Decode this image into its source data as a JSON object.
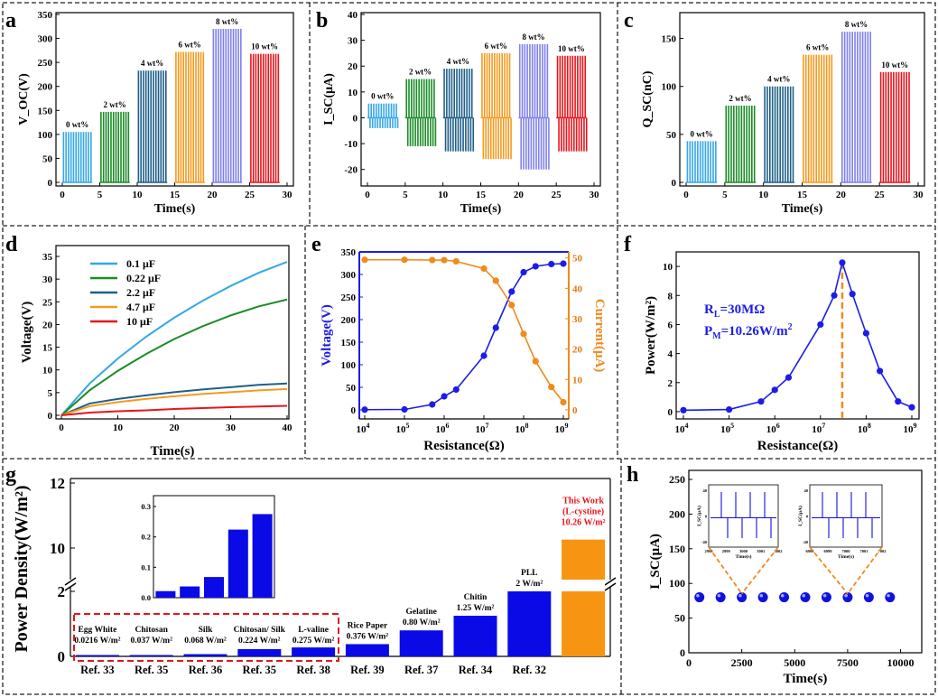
{
  "chart_data": [
    {
      "panel": "a",
      "type": "bar",
      "xlabel": "Time(s)",
      "ylabel": "V_OC(V)",
      "xlim": [
        0,
        30
      ],
      "ylim": [
        0,
        350
      ],
      "xticks": [
        "0",
        "5",
        "10",
        "15",
        "20",
        "25",
        "30"
      ],
      "yticks": [
        "0",
        "50",
        "100",
        "150",
        "200",
        "250",
        "300",
        "350"
      ],
      "series": [
        {
          "name": "0 wt%",
          "values": [
            105
          ],
          "time_range": [
            0,
            4
          ],
          "color": "#35a7e6"
        },
        {
          "name": "2 wt%",
          "values": [
            147
          ],
          "time_range": [
            5,
            9
          ],
          "color": "#1b8c27"
        },
        {
          "name": "4 wt%",
          "values": [
            233
          ],
          "time_range": [
            10,
            14
          ],
          "color": "#1f5f88"
        },
        {
          "name": "6 wt%",
          "values": [
            272
          ],
          "time_range": [
            15,
            19
          ],
          "color": "#f59a1e"
        },
        {
          "name": "8 wt%",
          "values": [
            320
          ],
          "time_range": [
            20,
            24
          ],
          "color": "#7f80ec"
        },
        {
          "name": "10 wt%",
          "values": [
            268
          ],
          "time_range": [
            25,
            29
          ],
          "color": "#e8141c"
        }
      ]
    },
    {
      "panel": "b",
      "type": "bar",
      "xlabel": "Time(s)",
      "ylabel": "I_SC(μA)",
      "xlim": [
        0,
        30
      ],
      "ylim": [
        -25,
        40
      ],
      "xticks": [
        "0",
        "5",
        "10",
        "15",
        "20",
        "25",
        "30"
      ],
      "yticks": [
        "-20",
        "-10",
        "0",
        "10",
        "20",
        "30",
        "40"
      ],
      "series": [
        {
          "name": "0 wt%",
          "values": [
            5.5,
            -4
          ],
          "time_range": [
            0,
            4
          ],
          "color": "#35a7e6"
        },
        {
          "name": "2 wt%",
          "values": [
            15,
            -11
          ],
          "time_range": [
            5,
            9
          ],
          "color": "#1b8c27"
        },
        {
          "name": "4 wt%",
          "values": [
            19,
            -13
          ],
          "time_range": [
            10,
            14
          ],
          "color": "#1f5f88"
        },
        {
          "name": "6 wt%",
          "values": [
            25,
            -16
          ],
          "time_range": [
            15,
            19
          ],
          "color": "#f59a1e"
        },
        {
          "name": "8 wt%",
          "values": [
            28.5,
            -20
          ],
          "time_range": [
            20,
            24
          ],
          "color": "#7f80ec"
        },
        {
          "name": "10 wt%",
          "values": [
            24,
            -13
          ],
          "time_range": [
            25,
            29
          ],
          "color": "#e8141c"
        }
      ]
    },
    {
      "panel": "c",
      "type": "bar",
      "xlabel": "Time(s)",
      "ylabel": "Q_SC(nC)",
      "xlim": [
        0,
        30
      ],
      "ylim": [
        0,
        175
      ],
      "xticks": [
        "0",
        "5",
        "10",
        "15",
        "20",
        "25",
        "30"
      ],
      "yticks": [
        "0",
        "50",
        "100",
        "150"
      ],
      "series": [
        {
          "name": "0 wt%",
          "values": [
            43
          ],
          "time_range": [
            0,
            4
          ],
          "color": "#35a7e6"
        },
        {
          "name": "2 wt%",
          "values": [
            80
          ],
          "time_range": [
            5,
            9
          ],
          "color": "#1b8c27"
        },
        {
          "name": "4 wt%",
          "values": [
            100
          ],
          "time_range": [
            10,
            14
          ],
          "color": "#1f5f88"
        },
        {
          "name": "6 wt%",
          "values": [
            133
          ],
          "time_range": [
            15,
            19
          ],
          "color": "#f59a1e"
        },
        {
          "name": "8 wt%",
          "values": [
            157
          ],
          "time_range": [
            20,
            24
          ],
          "color": "#7f80ec"
        },
        {
          "name": "10 wt%",
          "values": [
            115
          ],
          "time_range": [
            25,
            29
          ],
          "color": "#e8141c"
        }
      ]
    },
    {
      "panel": "d",
      "type": "line",
      "xlabel": "Time(s)",
      "ylabel": "Voltage(V)",
      "xlim": [
        0,
        40
      ],
      "ylim": [
        0,
        35
      ],
      "xticks": [
        "0",
        "10",
        "20",
        "30",
        "40"
      ],
      "yticks": [
        "0",
        "5",
        "10",
        "15",
        "20",
        "25",
        "30",
        "35"
      ],
      "x": [
        0,
        5,
        10,
        15,
        20,
        25,
        30,
        35,
        40
      ],
      "series": [
        {
          "name": "0.1 μF",
          "color": "#35a7e6",
          "values": [
            0,
            7,
            12.5,
            17.3,
            21.5,
            25.2,
            28.5,
            31.4,
            33.8
          ]
        },
        {
          "name": "0.22 μF",
          "color": "#1b8c27",
          "values": [
            0,
            5.5,
            9.8,
            13.5,
            16.8,
            19.6,
            22,
            24,
            25.5
          ]
        },
        {
          "name": "2.2 μF",
          "color": "#1f5f88",
          "values": [
            0,
            2.6,
            3.6,
            4.4,
            5.1,
            5.7,
            6.2,
            6.7,
            7
          ]
        },
        {
          "name": "4.7 μF",
          "color": "#f59a1e",
          "values": [
            0,
            2,
            2.9,
            3.6,
            4.2,
            4.7,
            5.1,
            5.5,
            5.8
          ]
        },
        {
          "name": "10 μF",
          "color": "#e8141c",
          "values": [
            0,
            0.6,
            0.9,
            1.1,
            1.4,
            1.6,
            1.8,
            1.95,
            2.1
          ]
        }
      ]
    },
    {
      "panel": "e",
      "type": "line",
      "xlabel": "Resistance(Ω)",
      "ylabel_left": "Voltage(V)",
      "ylabel_right": "Current(μA)",
      "xscale": "log",
      "xlim": [
        10000,
        1000000000
      ],
      "ylim_left": [
        -20,
        350
      ],
      "ylim_right": [
        -3,
        52
      ],
      "xticks": [
        "10",
        "10",
        "10",
        "10",
        "10",
        "10"
      ],
      "xtick_exponents": [
        "4",
        "5",
        "6",
        "7",
        "8",
        "9"
      ],
      "yticks_left": [
        "0",
        "50",
        "100",
        "150",
        "200",
        "250",
        "300",
        "350"
      ],
      "yticks_right": [
        "0",
        "10",
        "20",
        "30",
        "40",
        "50"
      ],
      "x": [
        10000,
        100000,
        500000,
        1000000,
        2000000,
        10000000,
        20000000,
        50000000,
        100000000,
        200000000,
        500000000,
        1000000000
      ],
      "series": [
        {
          "name": "Voltage",
          "axis": "left",
          "color": "#1c1ce8",
          "values": [
            0.5,
            1,
            12,
            30,
            45,
            120,
            182,
            262,
            305,
            318,
            323,
            324
          ]
        },
        {
          "name": "Current",
          "axis": "right",
          "color": "#f08a1c",
          "values": [
            49.4,
            49.4,
            49.3,
            49.3,
            48.9,
            46.5,
            42.5,
            34.5,
            25,
            16,
            7.5,
            2.5
          ]
        }
      ]
    },
    {
      "panel": "f",
      "type": "line",
      "xlabel": "Resistance(Ω)",
      "ylabel": "Power(W/m²)",
      "xscale": "log",
      "xlim": [
        10000,
        1000000000
      ],
      "ylim": [
        -0.5,
        11
      ],
      "xticks": [
        "10",
        "10",
        "10",
        "10",
        "10",
        "10"
      ],
      "xtick_exponents": [
        "4",
        "5",
        "6",
        "7",
        "8",
        "9"
      ],
      "yticks": [
        "0",
        "2",
        "4",
        "6",
        "8",
        "10"
      ],
      "x": [
        10000,
        100000,
        500000,
        1000000,
        2000000,
        10000000,
        20000000,
        30000000,
        50000000,
        100000000,
        200000000,
        500000000,
        1000000000
      ],
      "values": [
        0.1,
        0.15,
        0.7,
        1.5,
        2.35,
        6,
        8,
        10.26,
        8.1,
        5.4,
        2.8,
        0.7,
        0.3
      ],
      "color": "#1c1ce8",
      "peak_x": 30000000,
      "annotation_line1": "R",
      "annotation_sub1": "L",
      "annotation_rest1": "=30MΩ",
      "annotation_line2": "P",
      "annotation_sub2": "M",
      "annotation_rest2": "=10.26W/m",
      "annotation_sup2": "2"
    },
    {
      "panel": "g",
      "type": "bar",
      "ylabel": "Power Density(W/m²)",
      "yticks": [
        "0",
        "2",
        "10",
        "12"
      ],
      "categories": [
        "Egg White",
        "Chitosan",
        "Silk",
        "Chitosan/ Silk",
        "L-valine",
        "Rice Paper",
        "Gelatine",
        "Chitin",
        "PLL",
        "This Work (L-cystine)"
      ],
      "values": [
        0.0216,
        0.037,
        0.068,
        0.224,
        0.275,
        0.376,
        0.8,
        1.25,
        2,
        10.26
      ],
      "value_labels": [
        "0.0216 W/m²",
        "0.037 W/m²",
        "0.068 W/m²",
        "0.224 W/m²",
        "0.275 W/m²",
        "0.376 W/m²",
        "0.80 W/m²",
        "1.25 W/m²",
        "2 W/m²",
        "10.26 W/m²"
      ],
      "refs": [
        "Ref. 33",
        "Ref. 35",
        "Ref. 36",
        "Ref. 35",
        "Ref. 38",
        "Ref. 39",
        "Ref. 37",
        "Ref. 34",
        "Ref. 32",
        ""
      ],
      "this_work_line1": "This Work",
      "this_work_line2": "(L-cystine)",
      "colors": {
        "refs": "#0a0ae6",
        "this_work": "#f79412",
        "this_work_label": "#e8141c"
      },
      "inset": {
        "values": [
          0.0216,
          0.037,
          0.068,
          0.224,
          0.275
        ],
        "yticks": [
          "0.0",
          "0.1",
          "0.2",
          "0.3"
        ],
        "ylim": [
          0,
          0.3
        ]
      }
    },
    {
      "panel": "h",
      "type": "scatter",
      "xlabel": "Time(s)",
      "ylabel": "I_SC(μA)",
      "xlim": [
        0,
        11000
      ],
      "ylim": [
        0,
        250
      ],
      "xticks": [
        "0",
        "2500",
        "5000",
        "7500",
        "10000"
      ],
      "yticks": [
        "0",
        "50",
        "100",
        "150",
        "200",
        "250"
      ],
      "x": [
        500,
        1500,
        2500,
        3500,
        4500,
        5500,
        6500,
        7500,
        8500,
        9500
      ],
      "values": [
        80,
        80,
        80,
        80,
        80,
        80,
        80,
        80,
        80,
        80
      ],
      "color": "#1010e0",
      "insets": [
        {
          "xticks": [
            "2998",
            "2999",
            "3000",
            "3001",
            "3002"
          ],
          "yticks": [
            "40",
            "0",
            "-40"
          ],
          "ylabel": "I_SC(μA)",
          "xlabel": "Time(s)"
        },
        {
          "xticks": [
            "6998",
            "6999",
            "7000",
            "7001",
            "7002"
          ],
          "yticks": [
            "40",
            "0",
            "-40"
          ],
          "ylabel": "I_SC(μA)",
          "xlabel": "Time(s)"
        }
      ]
    }
  ],
  "panel_letters": [
    "a",
    "b",
    "c",
    "d",
    "e",
    "f",
    "g",
    "h"
  ]
}
